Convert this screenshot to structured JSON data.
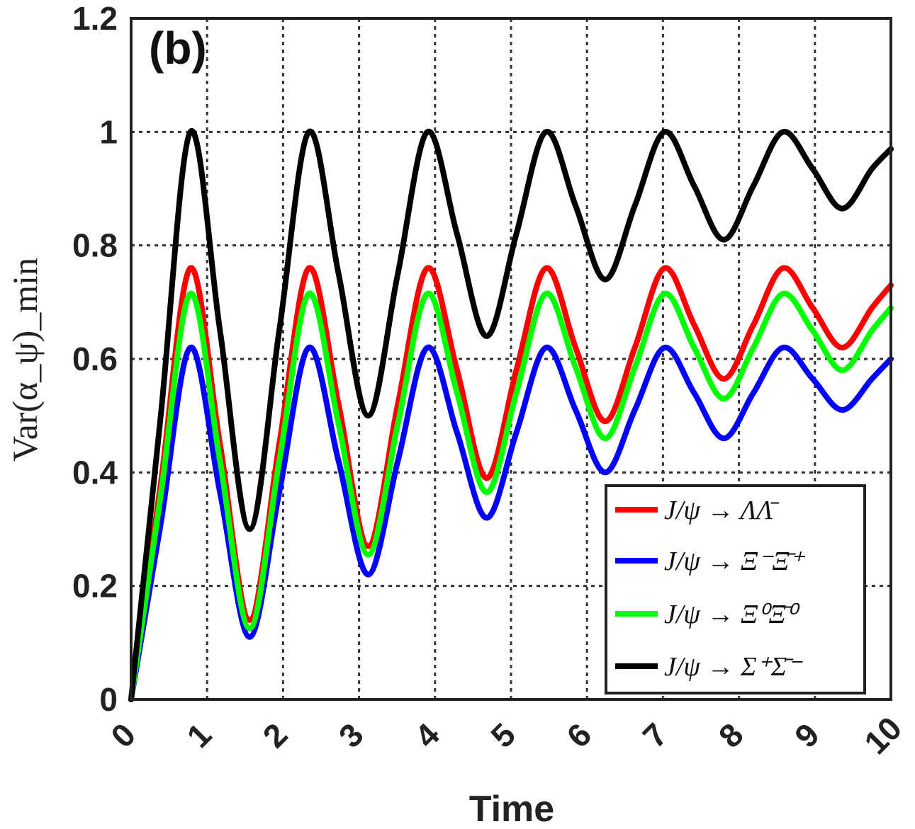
{
  "chart_data": {
    "type": "line",
    "panel_label": "(b)",
    "xlabel": "Time",
    "ylabel": "Var(α_ψ)_min",
    "xlim": [
      0,
      10
    ],
    "ylim": [
      0,
      1.2
    ],
    "grid": true,
    "x_ticks": [
      0,
      1,
      2,
      3,
      4,
      5,
      6,
      7,
      8,
      9,
      10
    ],
    "x_tick_labels": [
      "0",
      "1",
      "2",
      "3",
      "4",
      "5",
      "6",
      "7",
      "8",
      "9",
      "10"
    ],
    "y_ticks": [
      0,
      0.2,
      0.4,
      0.6,
      0.8,
      1,
      1.2
    ],
    "y_tick_labels": [
      "0",
      "0.2",
      "0.4",
      "0.6",
      "0.8",
      "1",
      "1.2"
    ],
    "legend_location": "bottom-right",
    "series": [
      {
        "name": "J/ψ → ΛΛ̄",
        "color": "#ff0000",
        "x": [
          0,
          0.39,
          0.78,
          1.17,
          1.56,
          1.95,
          2.34,
          2.73,
          3.12,
          3.51,
          3.9,
          4.29,
          4.68,
          5.07,
          5.46,
          5.85,
          6.24,
          6.63,
          7.02,
          7.41,
          7.8,
          8.19,
          8.58,
          8.97,
          9.36,
          9.75,
          10
        ],
        "values": [
          0,
          0.38,
          0.76,
          0.45,
          0.14,
          0.45,
          0.76,
          0.52,
          0.27,
          0.52,
          0.76,
          0.58,
          0.39,
          0.58,
          0.76,
          0.62,
          0.49,
          0.62,
          0.76,
          0.66,
          0.565,
          0.66,
          0.76,
          0.69,
          0.62,
          0.69,
          0.73
        ]
      },
      {
        "name": "J/ψ → Ξ⁻Ξ̄⁺",
        "color": "#0000ff",
        "x": [
          0,
          0.39,
          0.78,
          1.17,
          1.56,
          1.95,
          2.34,
          2.73,
          3.12,
          3.51,
          3.9,
          4.29,
          4.68,
          5.07,
          5.46,
          5.85,
          6.24,
          6.63,
          7.02,
          7.41,
          7.8,
          8.19,
          8.58,
          8.97,
          9.36,
          9.75,
          10
        ],
        "values": [
          0,
          0.31,
          0.62,
          0.365,
          0.11,
          0.365,
          0.62,
          0.42,
          0.22,
          0.42,
          0.62,
          0.47,
          0.32,
          0.47,
          0.62,
          0.51,
          0.4,
          0.51,
          0.62,
          0.54,
          0.46,
          0.54,
          0.62,
          0.565,
          0.51,
          0.565,
          0.6
        ]
      },
      {
        "name": "J/ψ → Ξ⁰Ξ̄⁰",
        "color": "#00ff00",
        "x": [
          0,
          0.39,
          0.78,
          1.17,
          1.56,
          1.95,
          2.34,
          2.73,
          3.12,
          3.51,
          3.9,
          4.29,
          4.68,
          5.07,
          5.46,
          5.85,
          6.24,
          6.63,
          7.02,
          7.41,
          7.8,
          8.19,
          8.58,
          8.97,
          9.36,
          9.75,
          10
        ],
        "values": [
          0,
          0.36,
          0.715,
          0.42,
          0.125,
          0.42,
          0.715,
          0.485,
          0.255,
          0.485,
          0.715,
          0.54,
          0.365,
          0.54,
          0.715,
          0.585,
          0.46,
          0.585,
          0.715,
          0.62,
          0.53,
          0.62,
          0.715,
          0.65,
          0.58,
          0.65,
          0.69
        ]
      },
      {
        "name": "J/ψ → Σ⁺Σ̄⁻",
        "color": "#000000",
        "x": [
          0,
          0.39,
          0.78,
          1.17,
          1.56,
          1.95,
          2.34,
          2.73,
          3.12,
          3.51,
          3.9,
          4.29,
          4.68,
          5.07,
          5.46,
          5.85,
          6.24,
          6.63,
          7.02,
          7.41,
          7.8,
          8.19,
          8.58,
          8.97,
          9.36,
          9.75,
          10
        ],
        "values": [
          0,
          0.5,
          1.0,
          0.65,
          0.3,
          0.65,
          1.0,
          0.75,
          0.5,
          0.75,
          1.0,
          0.82,
          0.64,
          0.82,
          1.0,
          0.87,
          0.74,
          0.87,
          1.0,
          0.905,
          0.81,
          0.905,
          1.0,
          0.935,
          0.865,
          0.935,
          0.97
        ]
      }
    ]
  }
}
